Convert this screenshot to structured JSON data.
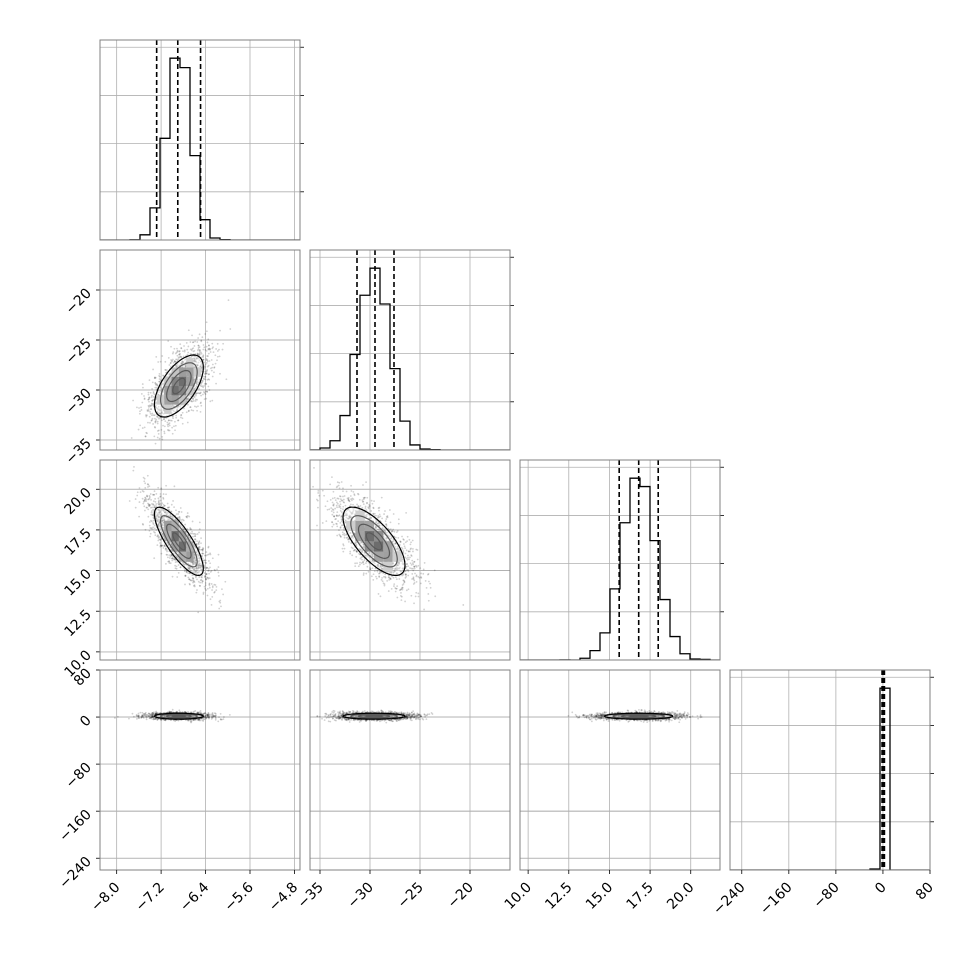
{
  "chart_data": {
    "type": "corner",
    "grid": true,
    "colors": {
      "line": "#000000",
      "grid": "#b0b0b0",
      "frame": "#808080",
      "background": "#ffffff"
    },
    "params": [
      {
        "range": [
          -8.3,
          -4.7
        ],
        "ticks": [
          "-8.0",
          "-7.2",
          "-6.4",
          "-5.6",
          "-4.8"
        ],
        "mean": -6.88,
        "sigma": 0.22,
        "quantiles": [
          -7.28,
          -6.9,
          -6.49
        ],
        "density_ticks": 4
      },
      {
        "range": [
          -36,
          -16
        ],
        "ticks": [
          "-35",
          "-30",
          "-25",
          "-20"
        ],
        "mean": -29.6,
        "sigma": 1.55,
        "quantiles": [
          -31.3,
          -29.5,
          -27.6
        ],
        "density_ticks": 4
      },
      {
        "range": [
          9.5,
          21.8
        ],
        "ticks": [
          "10.0",
          "12.5",
          "15.0",
          "17.5",
          "20.0"
        ],
        "mean": 16.8,
        "sigma": 1.05,
        "quantiles": [
          15.6,
          16.8,
          18.0
        ],
        "density_ticks": 4
      },
      {
        "range": [
          -260,
          80
        ],
        "ticks": [
          "-240",
          "-160",
          "-80",
          "0",
          "80"
        ],
        "mean": 1.5,
        "sigma": 2.5,
        "quantiles": [
          -1.5,
          0.5,
          2.5
        ],
        "density_ticks": 4
      }
    ],
    "correlations": [
      {
        "i": 1,
        "j": 0,
        "rho": 0.6
      },
      {
        "i": 2,
        "j": 0,
        "rho": -0.8
      },
      {
        "i": 2,
        "j": 1,
        "rho": -0.7
      },
      {
        "i": 3,
        "j": 0,
        "rho": 0.0
      },
      {
        "i": 3,
        "j": 1,
        "rho": 0.0
      },
      {
        "i": 3,
        "j": 2,
        "rho": 0.0
      }
    ]
  }
}
